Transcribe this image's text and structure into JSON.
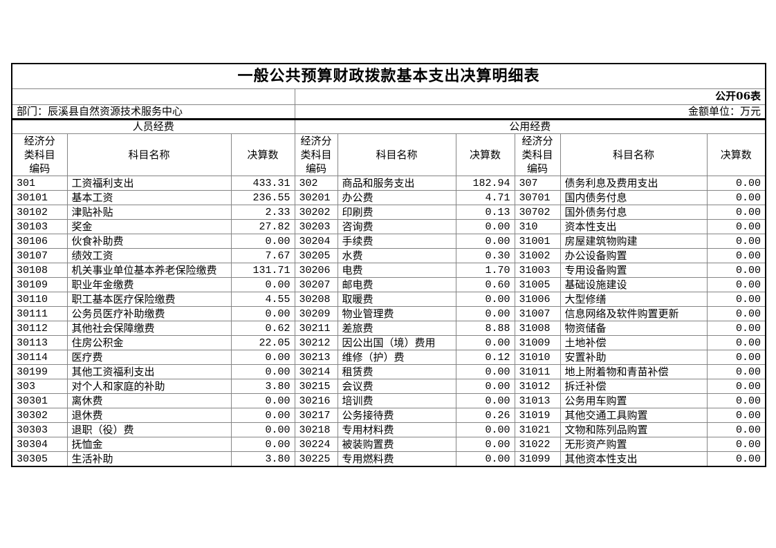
{
  "title": "一般公共预算财政拨款基本支出决算明细表",
  "table_code": "公开06表",
  "department_label": "部门：辰溪县自然资源技术服务中心",
  "unit_label": "金额单位：万元",
  "sections": {
    "personnel": "人员经费",
    "public": "公用经费"
  },
  "column_headers": {
    "code": "经济分\n类科目\n编码",
    "name": "科目名称",
    "value": "决算数"
  },
  "groups": [
    {
      "rows": [
        {
          "code": "301",
          "name": "工资福利支出",
          "value": "433.31"
        },
        {
          "code": "30101",
          "name": "基本工资",
          "value": "236.55"
        },
        {
          "code": "30102",
          "name": "津贴补贴",
          "value": "2.33"
        },
        {
          "code": "30103",
          "name": "奖金",
          "value": "27.82"
        },
        {
          "code": "30106",
          "name": "伙食补助费",
          "value": "0.00"
        },
        {
          "code": "30107",
          "name": "绩效工资",
          "value": "7.67"
        },
        {
          "code": "30108",
          "name": "机关事业单位基本养老保险缴费",
          "value": "131.71"
        },
        {
          "code": "30109",
          "name": "职业年金缴费",
          "value": "0.00"
        },
        {
          "code": "30110",
          "name": "职工基本医疗保险缴费",
          "value": "4.55"
        },
        {
          "code": "30111",
          "name": "公务员医疗补助缴费",
          "value": "0.00"
        },
        {
          "code": "30112",
          "name": "其他社会保障缴费",
          "value": "0.62"
        },
        {
          "code": "30113",
          "name": "住房公积金",
          "value": "22.05"
        },
        {
          "code": "30114",
          "name": "医疗费",
          "value": "0.00"
        },
        {
          "code": "30199",
          "name": "其他工资福利支出",
          "value": "0.00"
        },
        {
          "code": "303",
          "name": "对个人和家庭的补助",
          "value": "3.80"
        },
        {
          "code": "30301",
          "name": "离休费",
          "value": "0.00"
        },
        {
          "code": "30302",
          "name": "退休费",
          "value": "0.00"
        },
        {
          "code": "30303",
          "name": "退职（役）费",
          "value": "0.00"
        },
        {
          "code": "30304",
          "name": "抚恤金",
          "value": "0.00"
        },
        {
          "code": "30305",
          "name": "生活补助",
          "value": "3.80"
        }
      ]
    },
    {
      "rows": [
        {
          "code": "302",
          "name": "商品和服务支出",
          "value": "182.94"
        },
        {
          "code": "30201",
          "name": "办公费",
          "value": "4.71"
        },
        {
          "code": "30202",
          "name": "印刷费",
          "value": "0.13"
        },
        {
          "code": "30203",
          "name": "咨询费",
          "value": "0.00"
        },
        {
          "code": "30204",
          "name": "手续费",
          "value": "0.00"
        },
        {
          "code": "30205",
          "name": "水费",
          "value": "0.30"
        },
        {
          "code": "30206",
          "name": "电费",
          "value": "1.70"
        },
        {
          "code": "30207",
          "name": "邮电费",
          "value": "0.60"
        },
        {
          "code": "30208",
          "name": "取暖费",
          "value": "0.00"
        },
        {
          "code": "30209",
          "name": "物业管理费",
          "value": "0.00"
        },
        {
          "code": "30211",
          "name": "差旅费",
          "value": "8.88"
        },
        {
          "code": "30212",
          "name": "因公出国（境）费用",
          "value": "0.00"
        },
        {
          "code": "30213",
          "name": "维修（护）费",
          "value": "0.12"
        },
        {
          "code": "30214",
          "name": "租赁费",
          "value": "0.00"
        },
        {
          "code": "30215",
          "name": "会议费",
          "value": "0.00"
        },
        {
          "code": "30216",
          "name": "培训费",
          "value": "0.00"
        },
        {
          "code": "30217",
          "name": "公务接待费",
          "value": "0.26"
        },
        {
          "code": "30218",
          "name": "专用材料费",
          "value": "0.00"
        },
        {
          "code": "30224",
          "name": "被装购置费",
          "value": "0.00"
        },
        {
          "code": "30225",
          "name": "专用燃料费",
          "value": "0.00"
        }
      ]
    },
    {
      "rows": [
        {
          "code": "307",
          "name": "债务利息及费用支出",
          "value": "0.00"
        },
        {
          "code": "30701",
          "name": "国内债务付息",
          "value": "0.00"
        },
        {
          "code": "30702",
          "name": "国外债务付息",
          "value": "0.00"
        },
        {
          "code": "310",
          "name": "资本性支出",
          "value": "0.00"
        },
        {
          "code": "31001",
          "name": "房屋建筑物购建",
          "value": "0.00"
        },
        {
          "code": "31002",
          "name": "办公设备购置",
          "value": "0.00"
        },
        {
          "code": "31003",
          "name": "专用设备购置",
          "value": "0.00"
        },
        {
          "code": "31005",
          "name": "基础设施建设",
          "value": "0.00"
        },
        {
          "code": "31006",
          "name": "大型修缮",
          "value": "0.00"
        },
        {
          "code": "31007",
          "name": "信息网络及软件购置更新",
          "value": "0.00"
        },
        {
          "code": "31008",
          "name": "物资储备",
          "value": "0.00"
        },
        {
          "code": "31009",
          "name": "土地补偿",
          "value": "0.00"
        },
        {
          "code": "31010",
          "name": "安置补助",
          "value": "0.00"
        },
        {
          "code": "31011",
          "name": "地上附着物和青苗补偿",
          "value": "0.00"
        },
        {
          "code": "31012",
          "name": "拆迁补偿",
          "value": "0.00"
        },
        {
          "code": "31013",
          "name": "公务用车购置",
          "value": "0.00"
        },
        {
          "code": "31019",
          "name": "其他交通工具购置",
          "value": "0.00"
        },
        {
          "code": "31021",
          "name": "文物和陈列品购置",
          "value": "0.00"
        },
        {
          "code": "31022",
          "name": "无形资产购置",
          "value": "0.00"
        },
        {
          "code": "31099",
          "name": "其他资本性支出",
          "value": "0.00"
        }
      ]
    }
  ]
}
